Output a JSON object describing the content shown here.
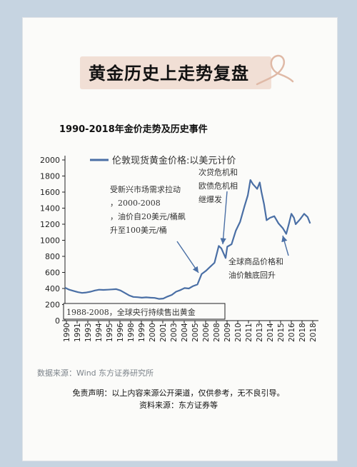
{
  "page": {
    "title": "黄金历史上走势复盘",
    "source_note": "数据来源：Wind  东方证券研究所",
    "disclaimer": "免责声明：以上内容来源公开渠道，仅供参考，无不良引导。",
    "credit": "资料来源：东方证券等"
  },
  "chart_data": {
    "type": "line",
    "title": "1990-2018年金价走势及历史事件",
    "xlabel": "",
    "ylabel": "",
    "xlim": [
      1990,
      2019
    ],
    "ylim": [
      0,
      2000
    ],
    "x_ticks": [
      "1990",
      "1991",
      "1993",
      "1994",
      "1995",
      "1996",
      "1998",
      "1999",
      "2000",
      "2001",
      "2003",
      "2004",
      "2005",
      "2006",
      "2008",
      "2009",
      "2010",
      "2011",
      "2013",
      "2014",
      "2015",
      "2016",
      "2018",
      "2018"
    ],
    "y_ticks": [
      0,
      200,
      400,
      600,
      800,
      1000,
      1200,
      1400,
      1600,
      1800,
      2000
    ],
    "grid": false,
    "legend_position": "top",
    "series": [
      {
        "name": "伦敦现货黄金价格:以美元计价",
        "color": "#4a6fa5",
        "x": [
          1990,
          1990.5,
          1991,
          1991.5,
          1992,
          1992.5,
          1993,
          1993.5,
          1994,
          1994.5,
          1995,
          1995.5,
          1996,
          1996.5,
          1997,
          1997.5,
          1998,
          1998.5,
          1999,
          1999.5,
          2000,
          2000.5,
          2001,
          2001.5,
          2002,
          2002.5,
          2003,
          2003.5,
          2004,
          2004.5,
          2005,
          2005.5,
          2006,
          2006.5,
          2007,
          2007.5,
          2008,
          2008.3,
          2008.8,
          2009,
          2009.5,
          2010,
          2010.5,
          2011,
          2011.4,
          2011.7,
          2012,
          2012.5,
          2012.8,
          2013,
          2013.3,
          2013.6,
          2014,
          2014.5,
          2015,
          2015.5,
          2015.9,
          2016.2,
          2016.5,
          2016.8,
          2017,
          2017.5,
          2018,
          2018.4,
          2018.7
        ],
        "y": [
          410,
          385,
          370,
          355,
          345,
          350,
          360,
          375,
          385,
          382,
          385,
          388,
          392,
          375,
          345,
          315,
          295,
          292,
          285,
          290,
          285,
          283,
          270,
          275,
          300,
          320,
          360,
          380,
          405,
          400,
          430,
          450,
          580,
          620,
          670,
          720,
          930,
          900,
          780,
          920,
          950,
          1120,
          1230,
          1420,
          1560,
          1750,
          1700,
          1640,
          1720,
          1600,
          1450,
          1250,
          1280,
          1300,
          1210,
          1150,
          1080,
          1200,
          1330,
          1280,
          1200,
          1260,
          1330,
          1290,
          1210
        ]
      }
    ],
    "annotations": [
      "受新兴市场需求拉动，2000-2008，油价自20美元/桶飙升至100美元/桶",
      "次贷危机和欧债危机相继爆发",
      "全球商品价格和油价触底回升",
      "1988-2008，全球央行持续售出黄金"
    ]
  }
}
